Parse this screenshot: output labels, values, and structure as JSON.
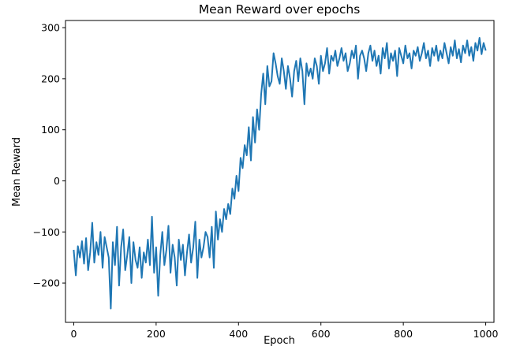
{
  "chart_data": {
    "type": "line",
    "title": "Mean Reward over epochs",
    "xlabel": "Epoch",
    "ylabel": "Mean Reward",
    "xlim": [
      -20,
      1020
    ],
    "ylim": [
      -277,
      314
    ],
    "xticks": [
      0,
      200,
      400,
      600,
      800,
      1000
    ],
    "yticks": [
      -200,
      -100,
      0,
      100,
      200,
      300
    ],
    "xtick_labels": [
      "0",
      "200",
      "400",
      "600",
      "800",
      "1000"
    ],
    "ytick_labels": [
      "−200",
      "−100",
      "0",
      "100",
      "200",
      "300"
    ],
    "grid": false,
    "legend": "none",
    "colors": {
      "line": "#1f77b4",
      "axes": "#000000"
    },
    "series": [
      {
        "x": [
          0,
          5,
          10,
          15,
          20,
          25,
          30,
          35,
          40,
          45,
          50,
          55,
          60,
          65,
          70,
          75,
          80,
          85,
          90,
          95,
          100,
          105,
          110,
          115,
          120,
          125,
          130,
          135,
          140,
          145,
          150,
          155,
          160,
          165,
          170,
          175,
          180,
          185,
          190,
          195,
          200,
          205,
          210,
          215,
          220,
          225,
          230,
          235,
          240,
          245,
          250,
          255,
          260,
          265,
          270,
          275,
          280,
          285,
          290,
          295,
          300,
          305,
          310,
          315,
          320,
          325,
          330,
          335,
          340,
          345,
          350,
          355,
          360,
          365,
          370,
          375,
          380,
          385,
          390,
          395,
          400,
          405,
          410,
          415,
          420,
          425,
          430,
          435,
          440,
          445,
          450,
          455,
          460,
          465,
          470,
          475,
          480,
          485,
          490,
          495,
          500,
          505,
          510,
          515,
          520,
          525,
          530,
          535,
          540,
          545,
          550,
          555,
          560,
          565,
          570,
          575,
          580,
          585,
          590,
          595,
          600,
          605,
          610,
          615,
          620,
          625,
          630,
          635,
          640,
          645,
          650,
          655,
          660,
          665,
          670,
          675,
          680,
          685,
          690,
          695,
          700,
          705,
          710,
          715,
          720,
          725,
          730,
          735,
          740,
          745,
          750,
          755,
          760,
          765,
          770,
          775,
          780,
          785,
          790,
          795,
          800,
          805,
          810,
          815,
          820,
          825,
          830,
          835,
          840,
          845,
          850,
          855,
          860,
          865,
          870,
          875,
          880,
          885,
          890,
          895,
          900,
          905,
          910,
          915,
          920,
          925,
          930,
          935,
          940,
          945,
          950,
          955,
          960,
          965,
          970,
          975,
          980,
          985,
          990,
          995,
          1000
        ],
        "values": [
          -135,
          -185,
          -128,
          -150,
          -118,
          -162,
          -112,
          -175,
          -140,
          -82,
          -160,
          -120,
          -145,
          -100,
          -170,
          -110,
          -130,
          -150,
          -250,
          -120,
          -165,
          -90,
          -205,
          -130,
          -95,
          -175,
          -145,
          -110,
          -200,
          -120,
          -155,
          -170,
          -130,
          -190,
          -140,
          -160,
          -115,
          -165,
          -70,
          -180,
          -130,
          -225,
          -145,
          -100,
          -165,
          -135,
          -88,
          -180,
          -125,
          -150,
          -205,
          -115,
          -155,
          -125,
          -185,
          -140,
          -105,
          -160,
          -130,
          -80,
          -190,
          -115,
          -150,
          -130,
          -100,
          -110,
          -150,
          -90,
          -170,
          -60,
          -115,
          -75,
          -100,
          -55,
          -75,
          -45,
          -65,
          -15,
          -35,
          10,
          -20,
          45,
          25,
          70,
          50,
          105,
          40,
          125,
          75,
          140,
          100,
          170,
          210,
          150,
          225,
          185,
          195,
          250,
          230,
          205,
          190,
          240,
          215,
          180,
          225,
          200,
          165,
          215,
          235,
          195,
          240,
          215,
          150,
          230,
          205,
          220,
          200,
          240,
          225,
          190,
          245,
          215,
          230,
          260,
          210,
          245,
          235,
          255,
          225,
          240,
          260,
          235,
          250,
          215,
          230,
          255,
          240,
          265,
          200,
          245,
          255,
          240,
          215,
          250,
          265,
          235,
          255,
          225,
          245,
          210,
          260,
          240,
          270,
          220,
          250,
          235,
          255,
          205,
          260,
          245,
          230,
          265,
          240,
          250,
          220,
          255,
          245,
          262,
          235,
          250,
          270,
          240,
          255,
          225,
          260,
          245,
          265,
          235,
          255,
          240,
          270,
          250,
          230,
          262,
          245,
          275,
          240,
          258,
          232,
          265,
          250,
          275,
          245,
          262,
          235,
          270,
          255,
          280,
          248,
          270,
          255
        ]
      }
    ]
  }
}
